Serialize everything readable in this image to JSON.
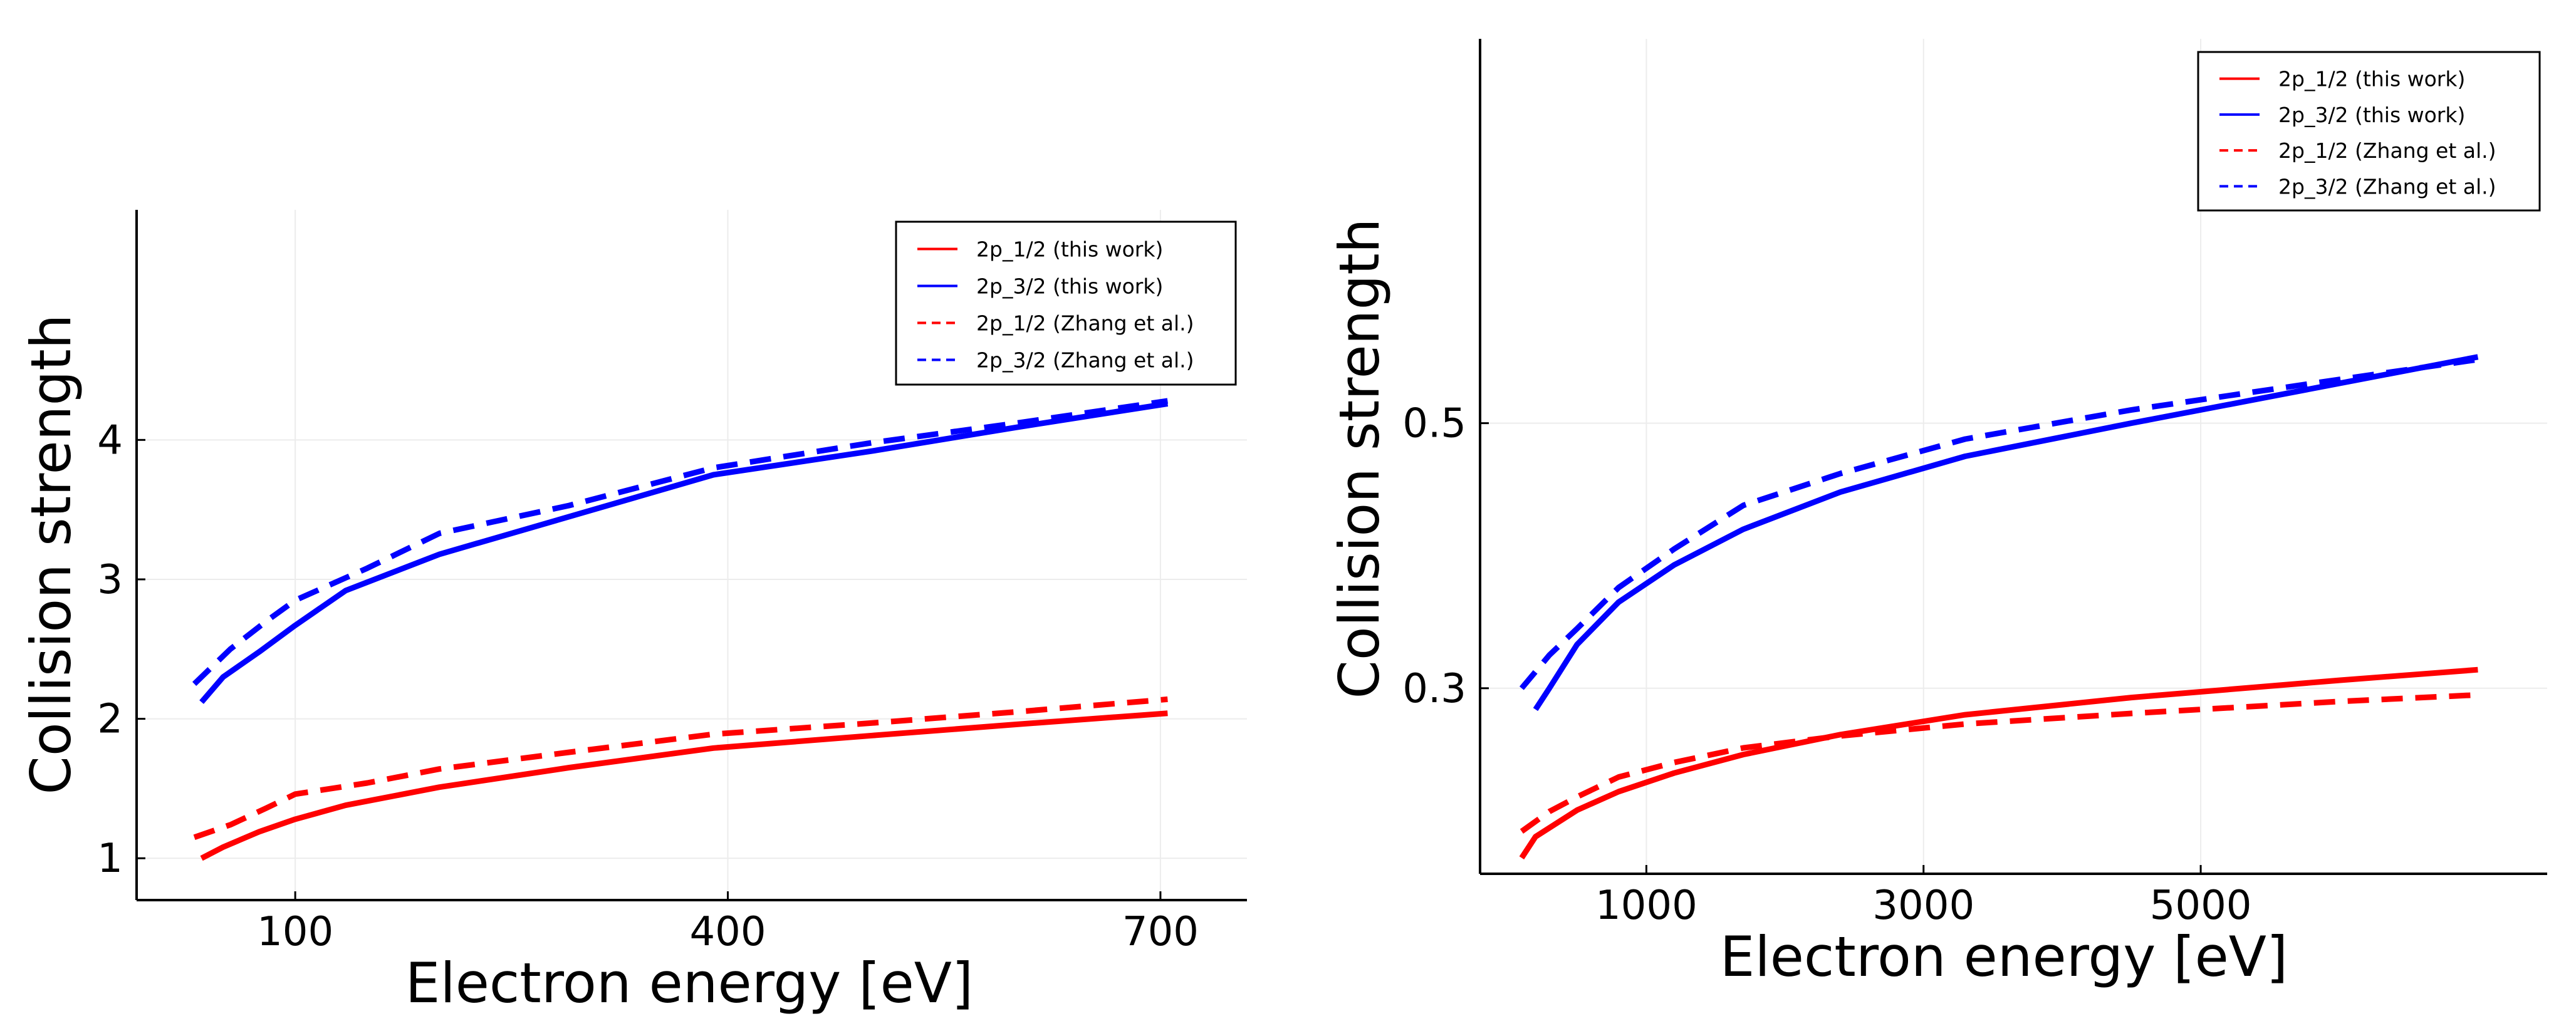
{
  "chart_data": [
    {
      "type": "line",
      "xlabel": "Electron energy [eV]",
      "ylabel": "Collision strength",
      "xlim": [
        -10,
        760
      ],
      "ylim": [
        0.7,
        5.65
      ],
      "xticks": [
        100,
        400,
        700
      ],
      "xtick_labels": [
        "100",
        "400",
        "700"
      ],
      "yticks": [
        1,
        2,
        3,
        4
      ],
      "ytick_labels": [
        "1",
        "2",
        "3",
        "4"
      ],
      "grid": true,
      "legend_position": "top-right",
      "series": [
        {
          "name": "2p_1/2 (this work)",
          "color": "#ff0000",
          "dash": "solid",
          "x": [
            35,
            50,
            75,
            100,
            135,
            200,
            290,
            390,
            500,
            600,
            705
          ],
          "y": [
            1.0,
            1.08,
            1.19,
            1.28,
            1.38,
            1.51,
            1.65,
            1.79,
            1.88,
            1.96,
            2.04
          ]
        },
        {
          "name": "2p_3/2 (this work)",
          "color": "#0000ff",
          "dash": "solid",
          "x": [
            35,
            50,
            75,
            100,
            135,
            200,
            290,
            390,
            500,
            600,
            705
          ],
          "y": [
            2.12,
            2.3,
            2.48,
            2.67,
            2.92,
            3.18,
            3.45,
            3.75,
            3.92,
            4.09,
            4.26
          ]
        },
        {
          "name": "2p_1/2 (Zhang et al.)",
          "color": "#ff0000",
          "dash": "dashed",
          "x": [
            30,
            55,
            80,
            100,
            150,
            200,
            290,
            390,
            500,
            600,
            705
          ],
          "y": [
            1.15,
            1.24,
            1.36,
            1.46,
            1.54,
            1.64,
            1.76,
            1.89,
            1.97,
            2.05,
            2.14
          ]
        },
        {
          "name": "2p_3/2 (Zhang et al.)",
          "color": "#0000ff",
          "dash": "dashed",
          "x": [
            30,
            55,
            80,
            100,
            150,
            200,
            290,
            390,
            500,
            600,
            705
          ],
          "y": [
            2.25,
            2.5,
            2.7,
            2.85,
            3.08,
            3.33,
            3.53,
            3.8,
            3.98,
            4.12,
            4.28
          ]
        }
      ]
    },
    {
      "type": "line",
      "xlabel": "Electron energy [eV]",
      "ylabel": "Collision strength",
      "xlim": [
        -200,
        7500
      ],
      "ylim": [
        0.16,
        0.79
      ],
      "xticks": [
        1000,
        3000,
        5000
      ],
      "xtick_labels": [
        "1000",
        "3000",
        "5000"
      ],
      "yticks": [
        0.3,
        0.5
      ],
      "ytick_labels": [
        "0.3",
        "0.5"
      ],
      "grid": true,
      "legend_position": "top-right",
      "series": [
        {
          "name": "2p_1/2 (this work)",
          "color": "#ff0000",
          "dash": "solid",
          "x": [
            100,
            200,
            500,
            800,
            1200,
            1700,
            2400,
            3300,
            4500,
            6000,
            7000
          ],
          "y": [
            0.172,
            0.188,
            0.208,
            0.222,
            0.236,
            0.25,
            0.265,
            0.28,
            0.293,
            0.306,
            0.314
          ]
        },
        {
          "name": "2p_3/2 (this work)",
          "color": "#0000ff",
          "dash": "solid",
          "x": [
            200,
            300,
            500,
            800,
            1200,
            1700,
            2400,
            3300,
            4500,
            6000,
            7000
          ],
          "y": [
            0.284,
            0.3,
            0.333,
            0.365,
            0.393,
            0.42,
            0.448,
            0.475,
            0.5,
            0.53,
            0.55
          ]
        },
        {
          "name": "2p_1/2 (Zhang et al.)",
          "color": "#ff0000",
          "dash": "dashed",
          "x": [
            100,
            300,
            500,
            800,
            1200,
            1700,
            2400,
            3300,
            4500,
            6000,
            7000
          ],
          "y": [
            0.192,
            0.207,
            0.218,
            0.233,
            0.244,
            0.255,
            0.264,
            0.273,
            0.281,
            0.29,
            0.295
          ]
        },
        {
          "name": "2p_3/2 (Zhang et al.)",
          "color": "#0000ff",
          "dash": "dashed",
          "x": [
            100,
            300,
            500,
            800,
            1200,
            1700,
            2400,
            3300,
            4500,
            6000,
            7000
          ],
          "y": [
            0.3,
            0.325,
            0.345,
            0.376,
            0.405,
            0.438,
            0.462,
            0.488,
            0.51,
            0.533,
            0.548
          ]
        }
      ]
    }
  ]
}
